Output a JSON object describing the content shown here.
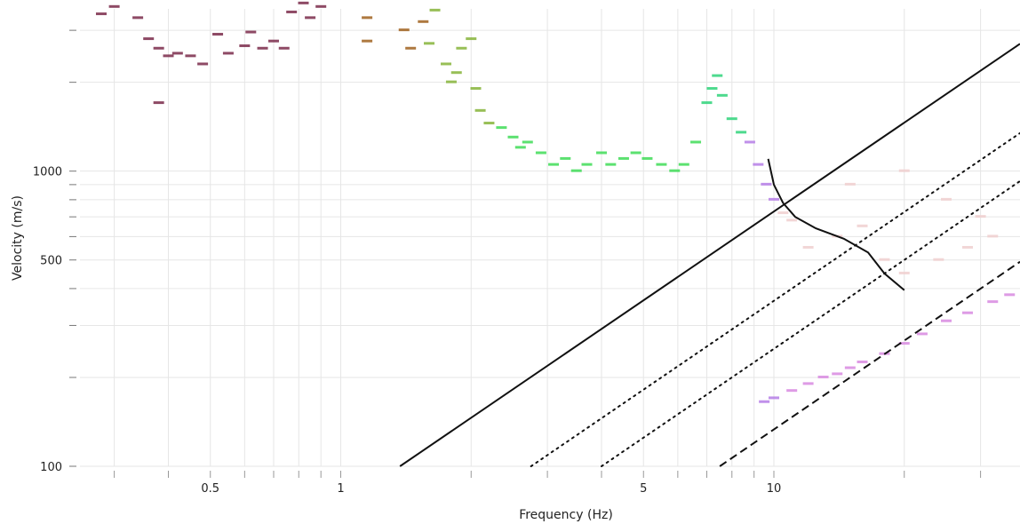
{
  "chart_data": {
    "type": "scatter",
    "xlabel": "Frequency (Hz)",
    "ylabel": "Velocity (m/s)",
    "x_scale": "log",
    "y_scale": "log",
    "xlim": [
      0.25,
      37
    ],
    "ylim": [
      100,
      3800
    ],
    "grid": true,
    "legend": "none",
    "x_tick_labels": [
      {
        "value": 0.5,
        "label": "0.5"
      },
      {
        "value": 1,
        "label": "1"
      },
      {
        "value": 5,
        "label": "5"
      },
      {
        "value": 10,
        "label": "10"
      }
    ],
    "y_tick_labels": [
      {
        "value": 100,
        "label": "100"
      },
      {
        "value": 500,
        "label": "500"
      },
      {
        "value": 1000,
        "label": "1000"
      }
    ],
    "x_minor_ticks": [
      0.3,
      0.4,
      0.6,
      0.7,
      0.8,
      0.9,
      2,
      3,
      4,
      6,
      7,
      8,
      9,
      20,
      30
    ],
    "y_minor_ticks": [
      200,
      300,
      400,
      600,
      700,
      800,
      900,
      2000,
      3000
    ],
    "dispersion_points": [
      {
        "f": 0.28,
        "v": 3400
      },
      {
        "f": 0.3,
        "v": 3600
      },
      {
        "f": 0.34,
        "v": 3300
      },
      {
        "f": 0.36,
        "v": 2800
      },
      {
        "f": 0.38,
        "v": 2600
      },
      {
        "f": 0.4,
        "v": 2450
      },
      {
        "f": 0.42,
        "v": 2500
      },
      {
        "f": 0.45,
        "v": 2450
      },
      {
        "f": 0.48,
        "v": 2300
      },
      {
        "f": 0.52,
        "v": 2900
      },
      {
        "f": 0.55,
        "v": 2500
      },
      {
        "f": 0.6,
        "v": 2650
      },
      {
        "f": 0.62,
        "v": 2950
      },
      {
        "f": 0.66,
        "v": 2600
      },
      {
        "f": 0.7,
        "v": 2750
      },
      {
        "f": 0.74,
        "v": 2600
      },
      {
        "f": 0.77,
        "v": 3450
      },
      {
        "f": 0.82,
        "v": 3700
      },
      {
        "f": 0.85,
        "v": 3300
      },
      {
        "f": 0.9,
        "v": 3600
      },
      {
        "f": 0.38,
        "v": 1700
      },
      {
        "f": 1.15,
        "v": 2750
      },
      {
        "f": 1.15,
        "v": 3300
      },
      {
        "f": 1.4,
        "v": 3000
      },
      {
        "f": 1.45,
        "v": 2600
      },
      {
        "f": 1.55,
        "v": 3200
      },
      {
        "f": 1.6,
        "v": 2700
      },
      {
        "f": 1.65,
        "v": 3500
      },
      {
        "f": 1.75,
        "v": 2300
      },
      {
        "f": 1.8,
        "v": 2000
      },
      {
        "f": 1.85,
        "v": 2150
      },
      {
        "f": 1.9,
        "v": 2600
      },
      {
        "f": 2.0,
        "v": 2800
      },
      {
        "f": 2.05,
        "v": 1900
      },
      {
        "f": 2.1,
        "v": 1600
      },
      {
        "f": 2.2,
        "v": 1450
      },
      {
        "f": 2.35,
        "v": 1400
      },
      {
        "f": 2.5,
        "v": 1300
      },
      {
        "f": 2.6,
        "v": 1200
      },
      {
        "f": 2.7,
        "v": 1250
      },
      {
        "f": 2.9,
        "v": 1150
      },
      {
        "f": 3.1,
        "v": 1050
      },
      {
        "f": 3.3,
        "v": 1100
      },
      {
        "f": 3.5,
        "v": 1000
      },
      {
        "f": 3.7,
        "v": 1050
      },
      {
        "f": 4.0,
        "v": 1150
      },
      {
        "f": 4.2,
        "v": 1050
      },
      {
        "f": 4.5,
        "v": 1100
      },
      {
        "f": 4.8,
        "v": 1150
      },
      {
        "f": 5.1,
        "v": 1100
      },
      {
        "f": 5.5,
        "v": 1050
      },
      {
        "f": 5.9,
        "v": 1000
      },
      {
        "f": 6.2,
        "v": 1050
      },
      {
        "f": 6.6,
        "v": 1250
      },
      {
        "f": 7.0,
        "v": 1700
      },
      {
        "f": 7.2,
        "v": 1900
      },
      {
        "f": 7.4,
        "v": 2100
      },
      {
        "f": 7.6,
        "v": 1800
      },
      {
        "f": 8.0,
        "v": 1500
      },
      {
        "f": 8.4,
        "v": 1350
      },
      {
        "f": 8.8,
        "v": 1250
      },
      {
        "f": 9.2,
        "v": 1050
      },
      {
        "f": 9.6,
        "v": 900
      },
      {
        "f": 10.0,
        "v": 800
      },
      {
        "f": 10.5,
        "v": 720
      },
      {
        "f": 11.0,
        "v": 680
      },
      {
        "f": 9.5,
        "v": 165
      },
      {
        "f": 10.0,
        "v": 170
      },
      {
        "f": 11.0,
        "v": 180
      },
      {
        "f": 12.0,
        "v": 190
      },
      {
        "f": 13.0,
        "v": 200
      },
      {
        "f": 14.0,
        "v": 205
      },
      {
        "f": 15.0,
        "v": 215
      },
      {
        "f": 16.0,
        "v": 225
      },
      {
        "f": 18.0,
        "v": 240
      },
      {
        "f": 20.0,
        "v": 260
      },
      {
        "f": 22.0,
        "v": 280
      },
      {
        "f": 25.0,
        "v": 310
      },
      {
        "f": 28.0,
        "v": 330
      },
      {
        "f": 32.0,
        "v": 360
      },
      {
        "f": 35.0,
        "v": 380
      },
      {
        "f": 12.0,
        "v": 550
      },
      {
        "f": 14.0,
        "v": 600
      },
      {
        "f": 16.0,
        "v": 650
      },
      {
        "f": 18.0,
        "v": 500
      },
      {
        "f": 20.0,
        "v": 450
      },
      {
        "f": 24.0,
        "v": 500
      },
      {
        "f": 28.0,
        "v": 550
      },
      {
        "f": 32.0,
        "v": 600
      },
      {
        "f": 15.0,
        "v": 900
      },
      {
        "f": 20.0,
        "v": 1000
      },
      {
        "f": 25.0,
        "v": 800
      },
      {
        "f": 30.0,
        "v": 700
      }
    ],
    "lines": [
      {
        "style": "solid",
        "points": [
          [
            1.37,
            100
          ],
          [
            37.0,
            2700
          ]
        ]
      },
      {
        "style": "dotted",
        "points": [
          [
            2.75,
            100
          ],
          [
            37.0,
            1345
          ]
        ]
      },
      {
        "style": "dotted",
        "points": [
          [
            4.0,
            100
          ],
          [
            37.0,
            925
          ]
        ]
      },
      {
        "style": "dashed",
        "points": [
          [
            7.5,
            100
          ],
          [
            37.0,
            493
          ]
        ]
      }
    ],
    "picked_curve": [
      [
        9.7,
        1100
      ],
      [
        10.0,
        900
      ],
      [
        10.5,
        780
      ],
      [
        11.2,
        700
      ],
      [
        12.5,
        640
      ],
      [
        14.5,
        590
      ],
      [
        16.5,
        530
      ],
      [
        18.0,
        450
      ],
      [
        20.0,
        395
      ]
    ]
  }
}
